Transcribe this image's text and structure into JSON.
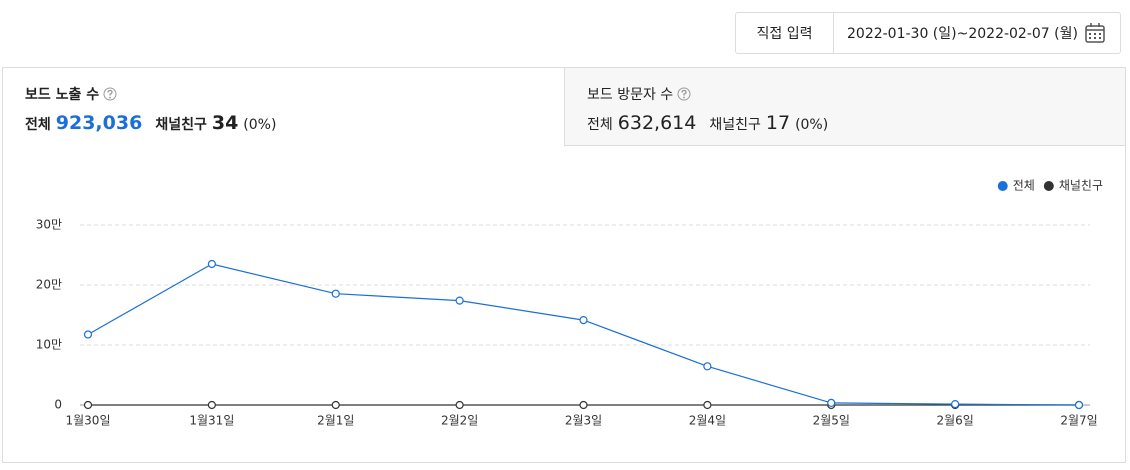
{
  "date_picker": {
    "button": "직접 입력",
    "range": "2022-01-30 (일)~2022-02-07 (월)"
  },
  "tabs": [
    {
      "title": "보드 노출 수",
      "total_label": "전체",
      "total": "923,036",
      "friends_label": "채널친구",
      "friends": "34",
      "friends_pct": "(0%)"
    },
    {
      "title": "보드 방문자 수",
      "total_label": "전체",
      "total": "632,614",
      "friends_label": "채널친구",
      "friends": "17",
      "friends_pct": "(0%)"
    }
  ],
  "chart_data": {
    "type": "line",
    "categories": [
      "1월30일",
      "1월31일",
      "2월1일",
      "2월2일",
      "2월3일",
      "2월4일",
      "2월5일",
      "2월6일",
      "2월7일"
    ],
    "series": [
      {
        "name": "전체",
        "color": "#1a6fd8",
        "values": [
          117500,
          235000,
          185500,
          174000,
          141500,
          64500,
          3500,
          1500,
          0
        ]
      },
      {
        "name": "채널친구",
        "color": "#333333",
        "values": [
          0,
          0,
          0,
          0,
          0,
          0,
          0,
          0,
          0
        ]
      }
    ],
    "ylim": [
      0,
      300000
    ],
    "yticks": [
      0,
      {
        "value": 100000,
        "label": "10만"
      },
      {
        "value": 200000,
        "label": "20만"
      },
      {
        "value": 300000,
        "label": "30만"
      }
    ],
    "grid": true,
    "legend": "top-right"
  }
}
